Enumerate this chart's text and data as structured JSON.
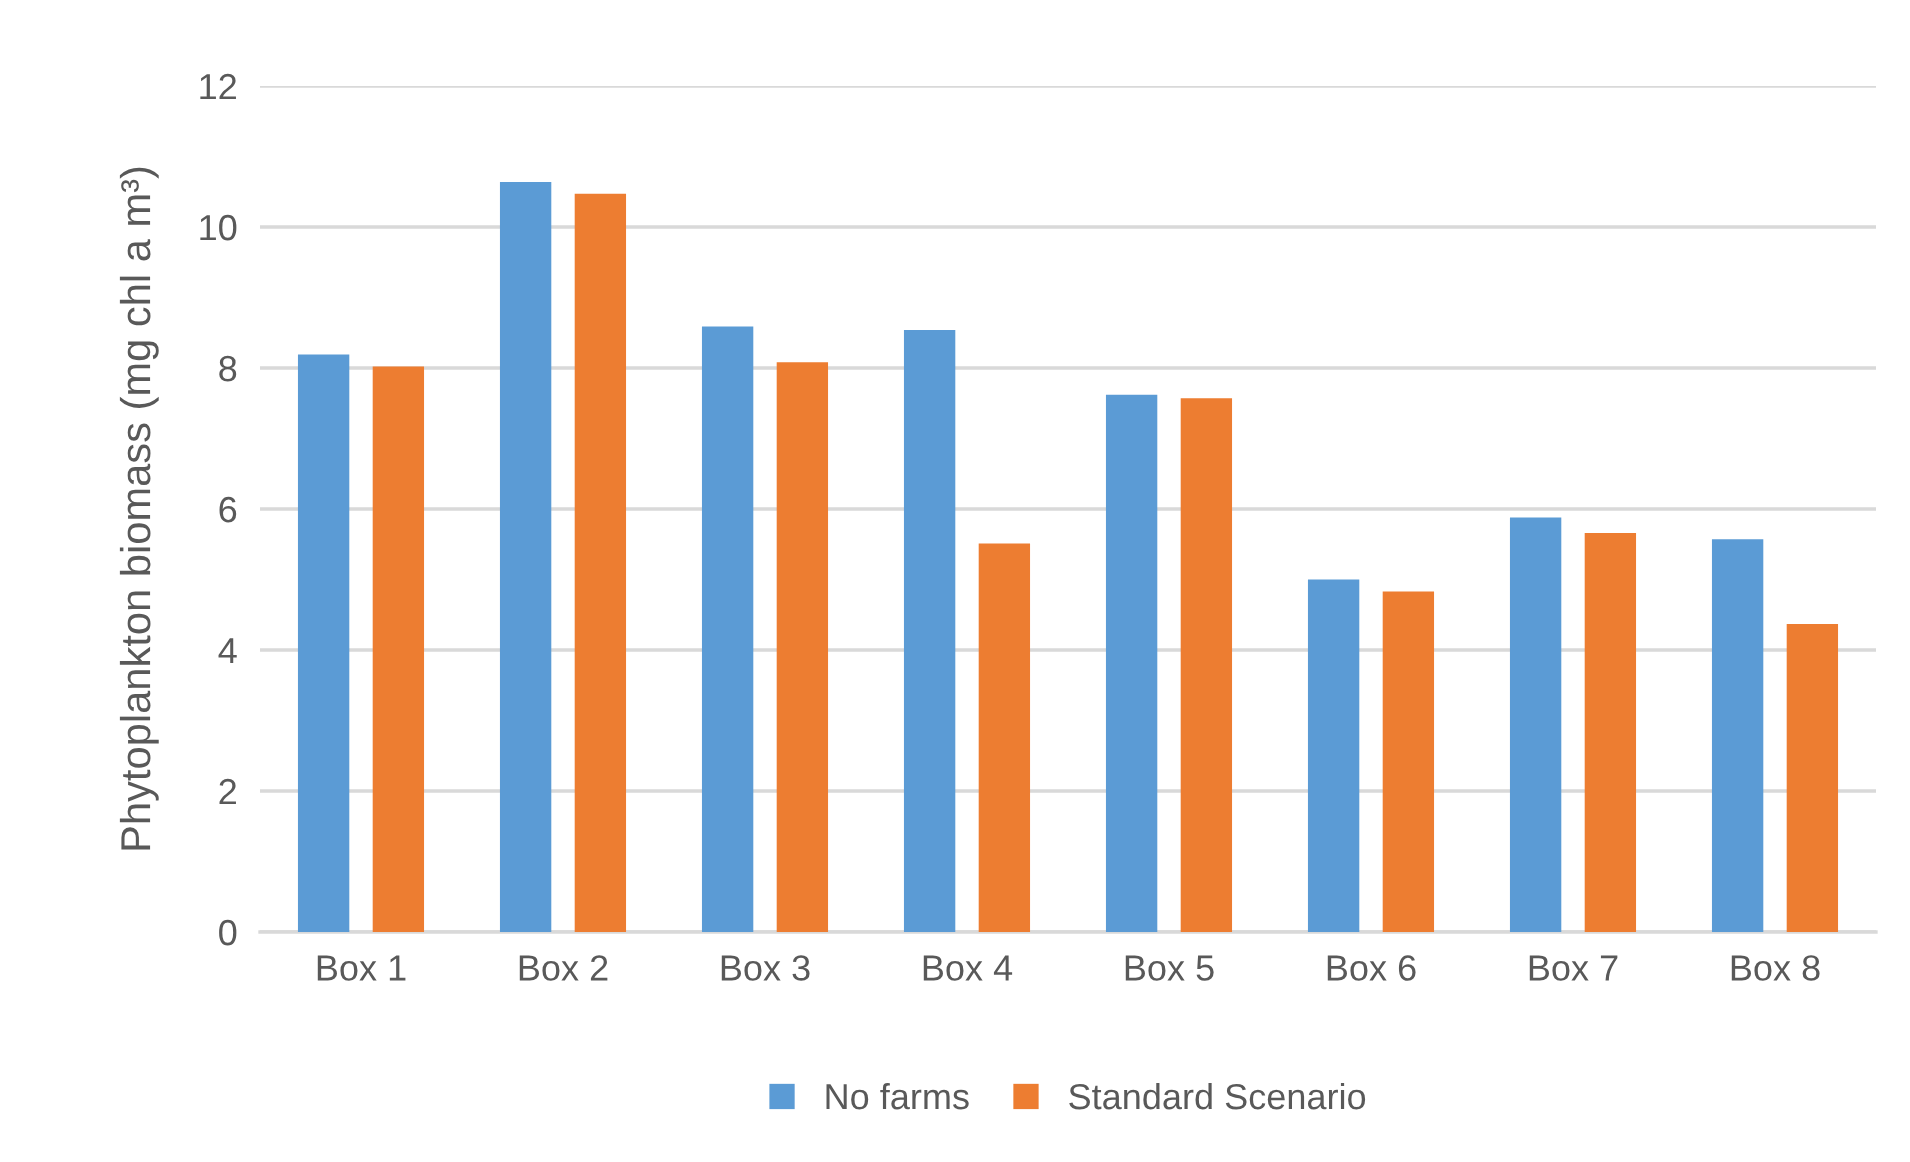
{
  "chart_data": {
    "type": "bar",
    "ylabel": "Phytoplankton biomass (mg chl a m³)",
    "categories": [
      "Box 1",
      "Box 2",
      "Box 3",
      "Box 4",
      "Box 5",
      "Box 6",
      "Box 7",
      "Box 8"
    ],
    "series": [
      {
        "name": "No farms",
        "color": "#5b9bd5",
        "values": [
          8.19,
          10.64,
          8.59,
          8.54,
          7.62,
          5.0,
          5.88,
          5.57
        ]
      },
      {
        "name": "Standard Scenario",
        "color": "#ed7d31",
        "values": [
          8.02,
          10.47,
          8.08,
          5.51,
          7.57,
          4.83,
          5.66,
          4.37
        ]
      }
    ],
    "ylim": [
      0,
      12
    ],
    "yticks": [
      0,
      2,
      4,
      6,
      8,
      10,
      12
    ],
    "grid": "y",
    "legend": "bottom"
  }
}
